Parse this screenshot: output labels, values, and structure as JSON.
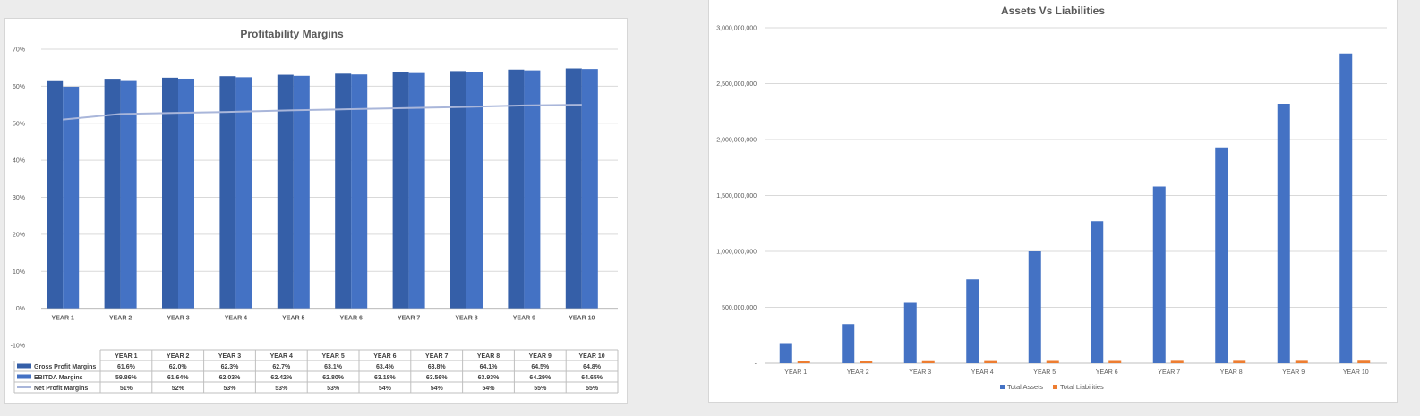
{
  "colors": {
    "gross": "#355fa8",
    "ebitda": "#4472c4",
    "net": "#a9b6da",
    "assets": "#4472c4",
    "liabilities": "#ed7d31",
    "grid": "#d9d9d9",
    "axis_text": "#595959"
  },
  "chart_data": [
    {
      "type": "bar",
      "title": "Profitability Margins",
      "categories": [
        "YEAR 1",
        "YEAR 2",
        "YEAR 3",
        "YEAR 4",
        "YEAR 5",
        "YEAR 6",
        "YEAR 7",
        "YEAR 8",
        "YEAR 9",
        "YEAR 10"
      ],
      "yticks": [
        "70%",
        "60%",
        "50%",
        "40%",
        "30%",
        "20%",
        "10%",
        "0%",
        "-10%"
      ],
      "ylim": [
        -10,
        70
      ],
      "grid": true,
      "legend": "data-table",
      "series": [
        {
          "name": "Gross Profit Margins",
          "type": "bar",
          "values": [
            61.6,
            62.0,
            62.3,
            62.7,
            63.1,
            63.4,
            63.8,
            64.1,
            64.5,
            64.8
          ],
          "labels": [
            "61.6%",
            "62.0%",
            "62.3%",
            "62.7%",
            "63.1%",
            "63.4%",
            "63.8%",
            "64.1%",
            "64.5%",
            "64.8%"
          ]
        },
        {
          "name": "EBITDA Margins",
          "type": "bar",
          "values": [
            59.86,
            61.64,
            62.03,
            62.42,
            62.8,
            63.18,
            63.56,
            63.93,
            64.29,
            64.65
          ],
          "labels": [
            "59.86%",
            "61.64%",
            "62.03%",
            "62.42%",
            "62.80%",
            "63.18%",
            "63.56%",
            "63.93%",
            "64.29%",
            "64.65%"
          ]
        },
        {
          "name": "Net Profit Margins",
          "type": "line",
          "values": [
            51,
            52.5,
            52.8,
            53.1,
            53.5,
            53.8,
            54.1,
            54.4,
            54.8,
            55
          ],
          "labels": [
            "51%",
            "52%",
            "53%",
            "53%",
            "53%",
            "54%",
            "54%",
            "54%",
            "55%",
            "55%"
          ]
        }
      ]
    },
    {
      "type": "bar",
      "title": "Assets Vs Liabilities",
      "categories": [
        "YEAR 1",
        "YEAR 2",
        "YEAR 3",
        "YEAR 4",
        "YEAR 5",
        "YEAR 6",
        "YEAR 7",
        "YEAR 8",
        "YEAR 9",
        "YEAR 10"
      ],
      "yticks": [
        "3,000,000,000",
        "2,500,000,000",
        "2,000,000,000",
        "1,500,000,000",
        "1,000,000,000",
        "500,000,000",
        "-"
      ],
      "ylim": [
        0,
        3000000000
      ],
      "grid": true,
      "legend": "bottom",
      "series": [
        {
          "name": "Total Assets",
          "values": [
            180000000,
            350000000,
            540000000,
            750000000,
            1000000000,
            1270000000,
            1580000000,
            1930000000,
            2320000000,
            2770000000
          ]
        },
        {
          "name": "Total Liabilities",
          "values": [
            22000000,
            24000000,
            26000000,
            27000000,
            28000000,
            28000000,
            29000000,
            29000000,
            29000000,
            30000000
          ]
        }
      ]
    }
  ]
}
